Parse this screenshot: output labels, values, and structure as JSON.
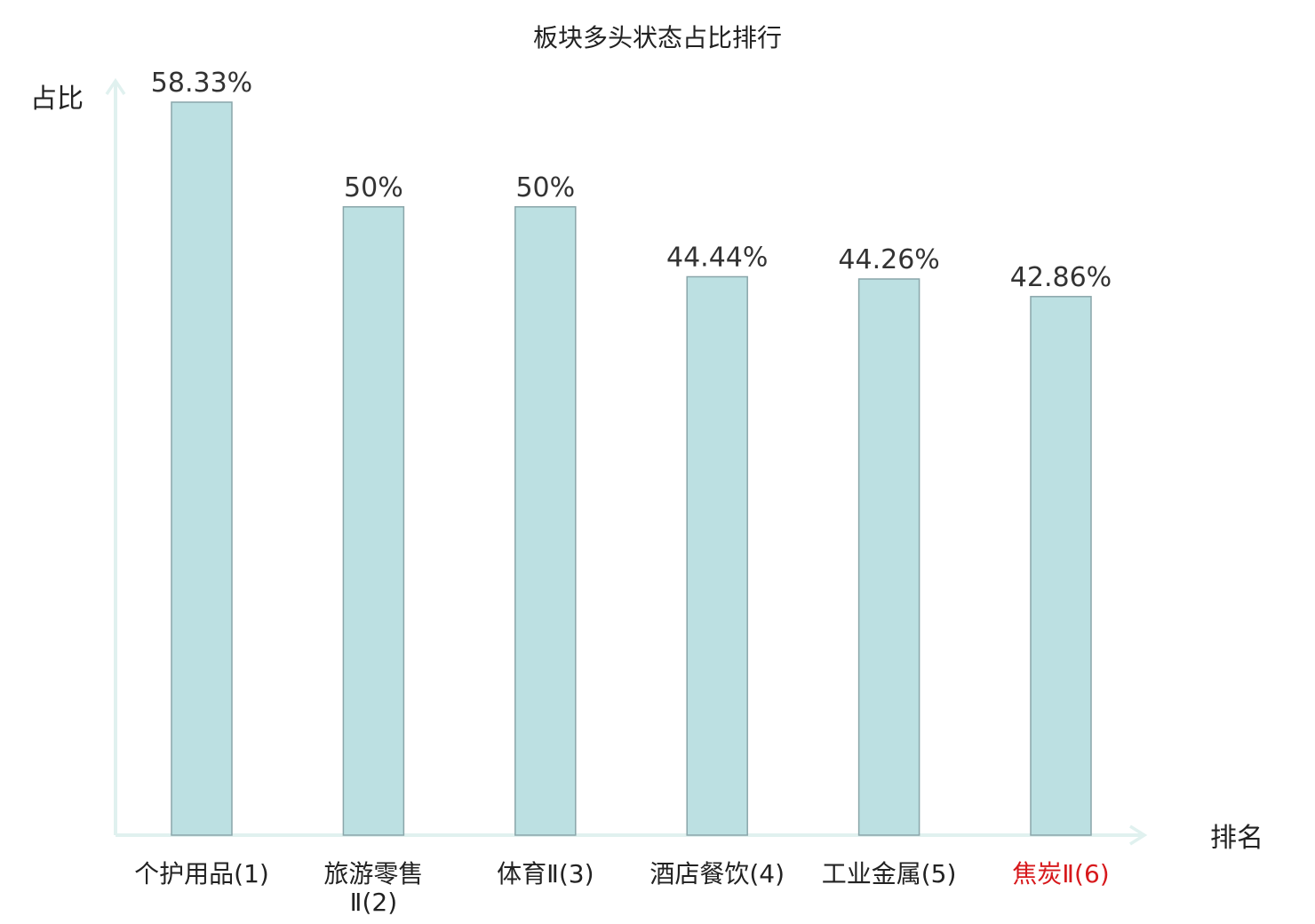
{
  "chart_data": {
    "type": "bar",
    "title": "板块多头状态占比排行",
    "ylabel": "占比",
    "xlabel": "排名",
    "ylim": [
      0,
      60
    ],
    "categories": [
      "个护用品(1)",
      "旅游零售Ⅱ(2)",
      "体育Ⅱ(3)",
      "酒店餐饮(4)",
      "工业金属(5)",
      "焦炭Ⅱ(6)"
    ],
    "values": [
      58.33,
      50,
      50,
      44.44,
      44.26,
      42.86
    ],
    "value_labels": [
      "58.33%",
      "50%",
      "50%",
      "44.44%",
      "44.26%",
      "42.86%"
    ],
    "highlight_index": 5,
    "grid": false,
    "legend": "none",
    "colors": {
      "bar_fill": "#bce0e2",
      "bar_stroke": "#8aa6aa",
      "axis": "#e0f1ef",
      "highlight_text": "#d7191c",
      "text": "#222222"
    }
  }
}
